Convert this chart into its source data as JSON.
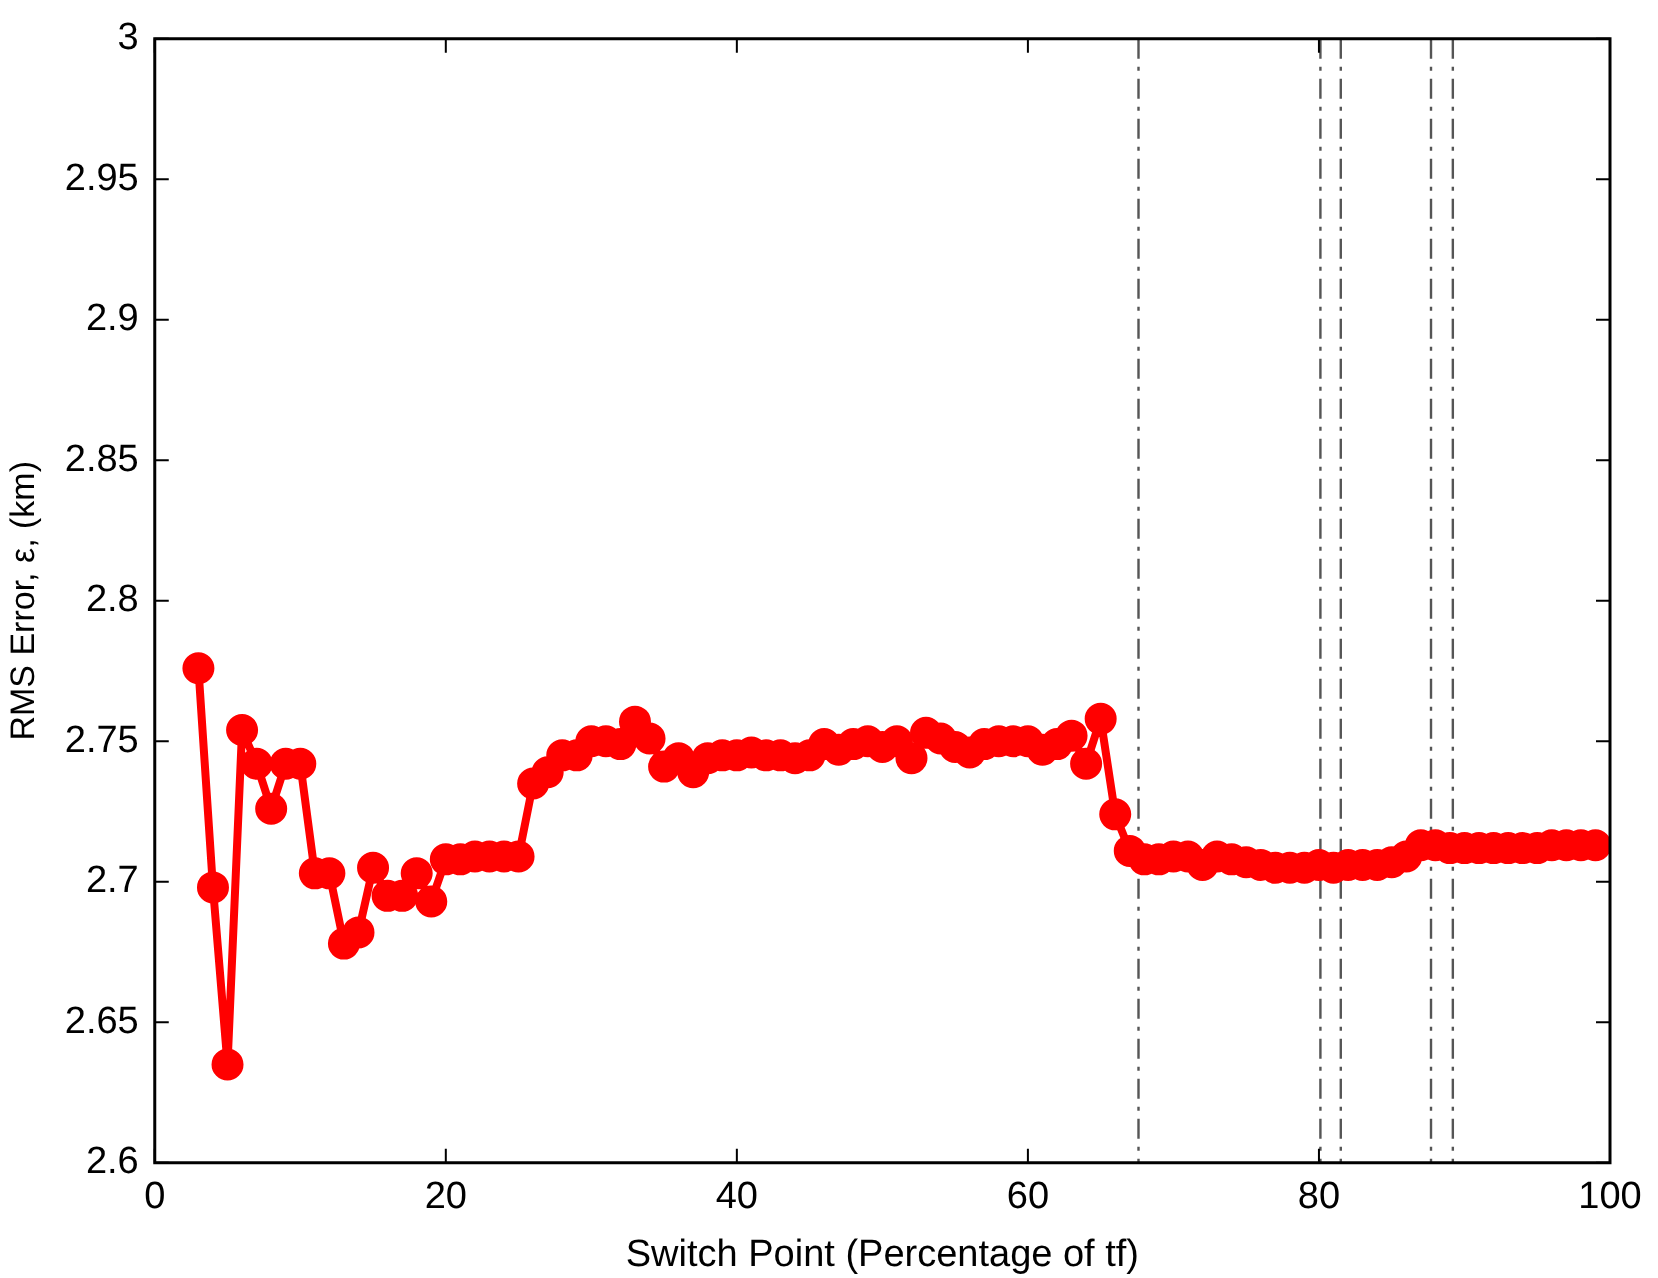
{
  "chart_data": {
    "type": "line",
    "xlabel": "Switch Point (Percentage of tf)",
    "ylabel": "RMS Error, ε, (km)",
    "x": [
      3,
      4,
      5,
      6,
      7,
      8,
      9,
      10,
      11,
      12,
      13,
      14,
      15,
      16,
      17,
      18,
      19,
      20,
      21,
      22,
      23,
      24,
      25,
      26,
      27,
      28,
      29,
      30,
      31,
      32,
      33,
      34,
      35,
      36,
      37,
      38,
      39,
      40,
      41,
      42,
      43,
      44,
      45,
      46,
      47,
      48,
      49,
      50,
      51,
      52,
      53,
      54,
      55,
      56,
      57,
      58,
      59,
      60,
      61,
      62,
      63,
      64,
      65,
      66,
      67,
      68,
      69,
      70,
      71,
      72,
      73,
      74,
      75,
      76,
      77,
      78,
      79,
      80,
      81,
      82,
      83,
      84,
      85,
      86,
      87,
      88,
      89,
      90,
      91,
      92,
      93,
      94,
      95,
      96,
      97,
      98,
      99
    ],
    "series": [
      {
        "color": "#ff0000",
        "values": [
          2.776,
          2.698,
          2.635,
          2.754,
          2.742,
          2.726,
          2.742,
          2.742,
          2.703,
          2.703,
          2.678,
          2.682,
          2.705,
          2.695,
          2.695,
          2.703,
          2.693,
          2.708,
          2.708,
          2.709,
          2.709,
          2.709,
          2.709,
          2.735,
          2.739,
          2.745,
          2.745,
          2.75,
          2.75,
          2.749,
          2.757,
          2.751,
          2.741,
          2.744,
          2.739,
          2.744,
          2.745,
          2.745,
          2.746,
          2.745,
          2.745,
          2.744,
          2.745,
          2.749,
          2.747,
          2.749,
          2.75,
          2.748,
          2.75,
          2.744,
          2.753,
          2.751,
          2.748,
          2.746,
          2.749,
          2.75,
          2.75,
          2.75,
          2.747,
          2.749,
          2.752,
          2.742,
          2.758,
          2.724,
          2.711,
          2.708,
          2.708,
          2.709,
          2.709,
          2.706,
          2.709,
          2.708,
          2.707,
          2.706,
          2.705,
          2.705,
          2.705,
          2.706,
          2.705,
          2.706,
          2.706,
          2.706,
          2.707,
          2.709,
          2.713,
          2.713,
          2.712,
          2.712,
          2.712,
          2.712,
          2.712,
          2.712,
          2.712,
          2.713,
          2.713,
          2.713,
          2.713
        ]
      }
    ],
    "xlim": [
      0,
      100
    ],
    "xticks": [
      0,
      20,
      40,
      60,
      80,
      100
    ],
    "ylim": [
      2.6,
      3
    ],
    "yticks": [
      2.6,
      2.65,
      2.7,
      2.75,
      2.8,
      2.85,
      2.9,
      2.95,
      3
    ],
    "ref_lines": [
      {
        "axis": "x",
        "value": 67.6,
        "color": "#555555",
        "line_style": "dashed"
      },
      {
        "axis": "x",
        "value": 80.1,
        "color": "#555555",
        "line_style": "dashed"
      },
      {
        "axis": "x",
        "value": 81.5,
        "color": "#555555",
        "line_style": "dashed"
      },
      {
        "axis": "x",
        "value": 87.7,
        "color": "#555555",
        "line_style": "dashed"
      },
      {
        "axis": "x",
        "value": 89.2,
        "color": "#555555",
        "line_style": "dashed"
      }
    ],
    "marker": "circle",
    "line_style": "solid",
    "grid": false,
    "legend": false
  }
}
